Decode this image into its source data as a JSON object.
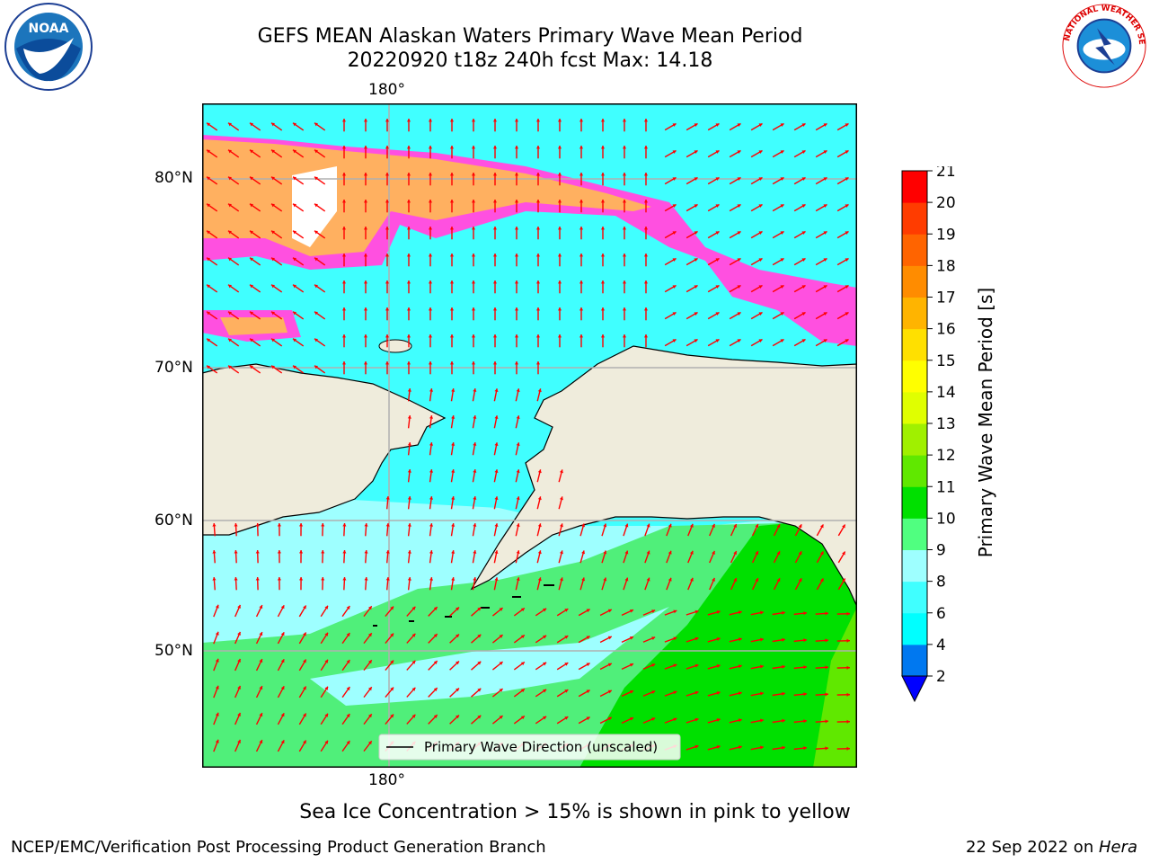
{
  "title": {
    "line1": "GEFS MEAN Alaskan Waters Primary Wave Mean Period",
    "line2": "20220920 t18z 240h fcst   Max: 14.18"
  },
  "logos": {
    "left": {
      "name": "noaa-logo",
      "text": "NOAA"
    },
    "right": {
      "name": "nws-logo",
      "text": "NATIONAL WEATHER SERVICE"
    }
  },
  "axes": {
    "top_lon": "180°",
    "bottom_lon": "180°",
    "lat_labels": [
      "80°N",
      "70°N",
      "60°N",
      "50°N"
    ]
  },
  "legend": {
    "label": "Primary Wave Direction (unscaled)"
  },
  "colorbar": {
    "label": "Primary Wave Mean Period [s]",
    "ticks": [
      "2",
      "4",
      "6",
      "8",
      "9",
      "10",
      "11",
      "12",
      "13",
      "14",
      "15",
      "16",
      "17",
      "18",
      "19",
      "20",
      "21"
    ],
    "colors": [
      "#0078f0",
      "#00ffff",
      "#40ffff",
      "#9effff",
      "#50ff80",
      "#00e000",
      "#60e800",
      "#a0f000",
      "#e0ff00",
      "#ffff00",
      "#ffe000",
      "#ffb400",
      "#ff8c00",
      "#ff6400",
      "#ff3c00",
      "#ff0000"
    ],
    "extend_color": "#0000ff"
  },
  "footnote": "Sea Ice Concentration > 15% is shown in pink to yellow",
  "credit": "NCEP/EMC/Verification Post Processing Product Generation Branch",
  "date": {
    "text": "22 Sep 2022 on ",
    "machine": "Hera"
  },
  "colors": {
    "land": "#efecdc",
    "ocean_light": "#9effff",
    "ocean_cyan": "#40ffff",
    "ocean_green": "#50ef7a",
    "ocean_bright_green": "#00e000",
    "ice_pink": "#ff50e0",
    "ice_orange": "#ffb060",
    "arrow": "#ff0000",
    "gridline": "#b0b0b0"
  }
}
